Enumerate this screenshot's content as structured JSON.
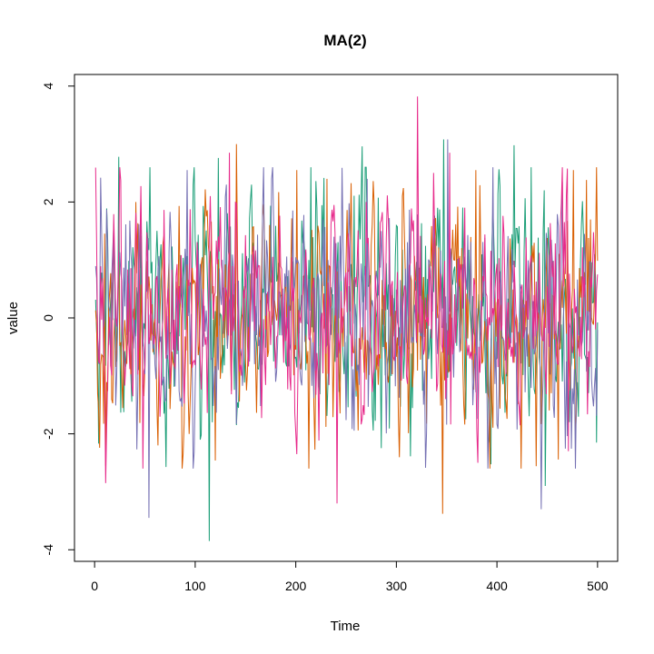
{
  "chart_data": {
    "type": "line",
    "title": "MA(2)",
    "xlabel": "Time",
    "ylabel": "value",
    "xlim": [
      -20,
      520
    ],
    "ylim": [
      -4.2,
      4.2
    ],
    "x_ticks": [
      0,
      100,
      200,
      300,
      400,
      500
    ],
    "y_ticks": [
      -4,
      -2,
      0,
      2,
      4
    ],
    "grid": false,
    "legend": "none",
    "n": 500,
    "series": [
      {
        "color": "#1B9E77",
        "highlights": [
          [
            23,
            2.78
          ],
          [
            113,
            -3.85
          ],
          [
            122,
            2.76
          ],
          [
            265,
            2.96
          ],
          [
            346,
            3.08
          ],
          [
            416,
            2.98
          ],
          [
            433,
            2.6
          ],
          [
            447,
            -2.9
          ],
          [
            498,
            -2.15
          ]
        ]
      },
      {
        "color": "#D95F02",
        "highlights": [
          [
            10,
            -2.55
          ],
          [
            40,
            2.0
          ],
          [
            140,
            3.0
          ],
          [
            200,
            2.55
          ],
          [
            230,
            2.4
          ],
          [
            345,
            -3.38
          ],
          [
            378,
            2.55
          ],
          [
            475,
            2.55
          ],
          [
            488,
            2.38
          ]
        ]
      },
      {
        "color": "#7570B3",
        "highlights": [
          [
            5,
            2.42
          ],
          [
            53,
            -3.45
          ],
          [
            91,
            2.55
          ],
          [
            130,
            2.3
          ],
          [
            270,
            2.4
          ],
          [
            350,
            3.08
          ],
          [
            395,
            2.6
          ],
          [
            443,
            -3.3
          ],
          [
            464,
            2.35
          ]
        ]
      },
      {
        "color": "#E7298A",
        "highlights": [
          [
            10,
            -2.85
          ],
          [
            47,
            -2.6
          ],
          [
            133,
            2.85
          ],
          [
            240,
            -3.2
          ],
          [
            320,
            3.82
          ],
          [
            352,
            2.85
          ],
          [
            380,
            -2.5
          ],
          [
            470,
            -2.3
          ],
          [
            499,
            0.75
          ]
        ]
      }
    ]
  }
}
